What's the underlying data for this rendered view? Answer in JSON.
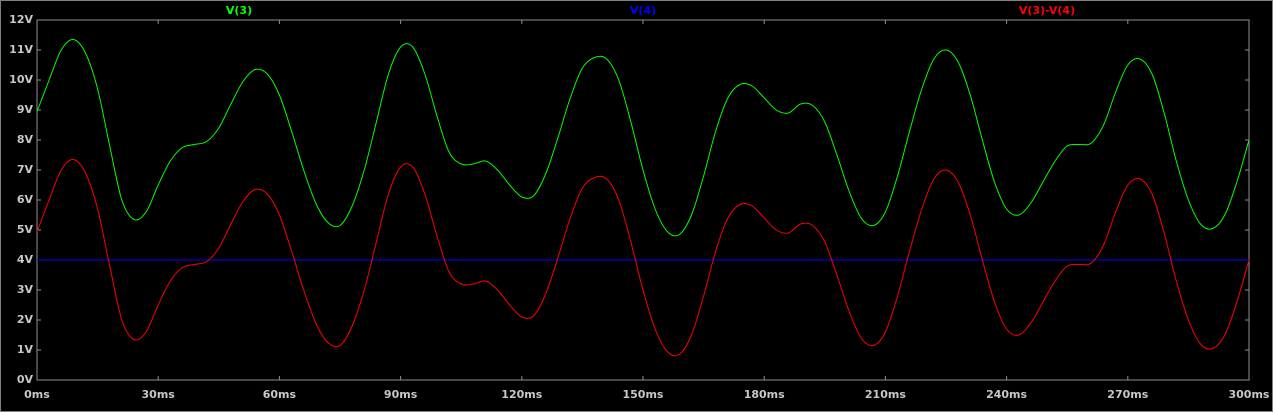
{
  "chart_data": {
    "type": "line",
    "x": [
      0,
      3,
      6,
      9,
      12,
      15,
      18,
      21,
      24,
      27,
      30,
      33,
      36,
      39,
      42,
      45,
      48,
      51,
      54,
      57,
      60,
      63,
      66,
      69,
      72,
      75,
      78,
      81,
      84,
      87,
      90,
      93,
      96,
      99,
      102,
      105,
      108,
      111,
      114,
      117,
      120,
      123,
      126,
      129,
      132,
      135,
      138,
      141,
      144,
      147,
      150,
      153,
      156,
      159,
      162,
      165,
      168,
      171,
      174,
      177,
      180,
      183,
      186,
      189,
      192,
      195,
      198,
      201,
      204,
      207,
      210,
      213,
      216,
      219,
      222,
      225,
      228,
      231,
      234,
      237,
      240,
      243,
      246,
      249,
      252,
      255,
      258,
      261,
      264,
      267,
      270,
      273,
      276,
      279,
      282,
      285,
      288,
      291,
      294,
      297,
      300
    ],
    "series": [
      {
        "name": "V(3)",
        "color": "#00ff00",
        "values": [
          8.95,
          10.0,
          11.0,
          11.35,
          10.9,
          9.7,
          7.8,
          6.0,
          5.35,
          5.6,
          6.5,
          7.3,
          7.75,
          7.85,
          7.95,
          8.4,
          9.2,
          9.95,
          10.35,
          10.2,
          9.5,
          8.3,
          7.0,
          5.9,
          5.25,
          5.15,
          5.8,
          7.0,
          8.6,
          10.2,
          11.1,
          11.1,
          10.2,
          8.8,
          7.6,
          7.2,
          7.2,
          7.3,
          7.0,
          6.5,
          6.1,
          6.15,
          6.9,
          8.1,
          9.4,
          10.4,
          10.75,
          10.7,
          10.0,
          8.6,
          7.0,
          5.7,
          4.95,
          4.85,
          5.5,
          6.8,
          8.3,
          9.4,
          9.85,
          9.8,
          9.4,
          9.0,
          8.9,
          9.2,
          9.15,
          8.6,
          7.5,
          6.3,
          5.4,
          5.15,
          5.6,
          6.8,
          8.3,
          9.7,
          10.7,
          11.0,
          10.6,
          9.5,
          8.0,
          6.6,
          5.7,
          5.5,
          5.9,
          6.6,
          7.3,
          7.8,
          7.85,
          7.9,
          8.5,
          9.6,
          10.5,
          10.7,
          10.2,
          8.9,
          7.3,
          6.0,
          5.2,
          5.05,
          5.5,
          6.6,
          8.0
        ]
      },
      {
        "name": "V(4)",
        "color": "#0000ff",
        "values": [
          4,
          4,
          4,
          4,
          4,
          4,
          4,
          4,
          4,
          4,
          4,
          4,
          4,
          4,
          4,
          4,
          4,
          4,
          4,
          4,
          4,
          4,
          4,
          4,
          4,
          4,
          4,
          4,
          4,
          4,
          4,
          4,
          4,
          4,
          4,
          4,
          4,
          4,
          4,
          4,
          4,
          4,
          4,
          4,
          4,
          4,
          4,
          4,
          4,
          4,
          4,
          4,
          4,
          4,
          4,
          4,
          4,
          4,
          4,
          4,
          4,
          4,
          4,
          4,
          4,
          4,
          4,
          4,
          4,
          4,
          4,
          4,
          4,
          4,
          4,
          4,
          4,
          4,
          4,
          4,
          4,
          4,
          4,
          4,
          4,
          4,
          4,
          4,
          4,
          4,
          4,
          4,
          4,
          4,
          4,
          4,
          4,
          4,
          4,
          4,
          4
        ]
      },
      {
        "name": "V(3)-V(4)",
        "color": "#ff0000",
        "values": [
          4.95,
          6,
          7,
          7.35,
          6.9,
          5.7,
          3.8,
          2,
          1.35,
          1.6,
          2.5,
          3.3,
          3.75,
          3.85,
          3.95,
          4.4,
          5.2,
          5.95,
          6.35,
          6.2,
          5.5,
          4.3,
          3,
          1.9,
          1.25,
          1.15,
          1.8,
          3,
          4.6,
          6.2,
          7.1,
          7.1,
          6.2,
          4.8,
          3.6,
          3.2,
          3.2,
          3.3,
          3,
          2.5,
          2.1,
          2.15,
          2.9,
          4.1,
          5.4,
          6.4,
          6.75,
          6.7,
          6,
          4.6,
          3,
          1.7,
          0.95,
          0.85,
          1.5,
          2.8,
          4.3,
          5.4,
          5.85,
          5.8,
          5.4,
          5,
          4.9,
          5.2,
          5.15,
          4.6,
          3.5,
          2.3,
          1.4,
          1.15,
          1.6,
          2.8,
          4.3,
          5.7,
          6.7,
          7,
          6.6,
          5.5,
          4,
          2.6,
          1.7,
          1.5,
          1.9,
          2.6,
          3.3,
          3.8,
          3.85,
          3.9,
          4.5,
          5.6,
          6.5,
          6.7,
          6.2,
          4.9,
          3.3,
          2,
          1.2,
          1.05,
          1.5,
          2.6,
          4
        ]
      }
    ],
    "xlim": [
      0,
      300
    ],
    "xticks": [
      {
        "value": 0,
        "label": "0ms"
      },
      {
        "value": 30,
        "label": "30ms"
      },
      {
        "value": 60,
        "label": "60ms"
      },
      {
        "value": 90,
        "label": "90ms"
      },
      {
        "value": 120,
        "label": "120ms"
      },
      {
        "value": 150,
        "label": "150ms"
      },
      {
        "value": 180,
        "label": "180ms"
      },
      {
        "value": 210,
        "label": "210ms"
      },
      {
        "value": 240,
        "label": "240ms"
      },
      {
        "value": 270,
        "label": "270ms"
      },
      {
        "value": 300,
        "label": "300ms"
      }
    ],
    "ylim": [
      0,
      12
    ],
    "yticks": [
      {
        "value": 0,
        "label": "0V"
      },
      {
        "value": 1,
        "label": "1V"
      },
      {
        "value": 2,
        "label": "2V"
      },
      {
        "value": 3,
        "label": "3V"
      },
      {
        "value": 4,
        "label": "4V"
      },
      {
        "value": 5,
        "label": "5V"
      },
      {
        "value": 6,
        "label": "6V"
      },
      {
        "value": 7,
        "label": "7V"
      },
      {
        "value": 8,
        "label": "8V"
      },
      {
        "value": 9,
        "label": "9V"
      },
      {
        "value": 10,
        "label": "10V"
      },
      {
        "value": 11,
        "label": "11V"
      },
      {
        "value": 12,
        "label": "12V"
      }
    ],
    "grid": false
  }
}
